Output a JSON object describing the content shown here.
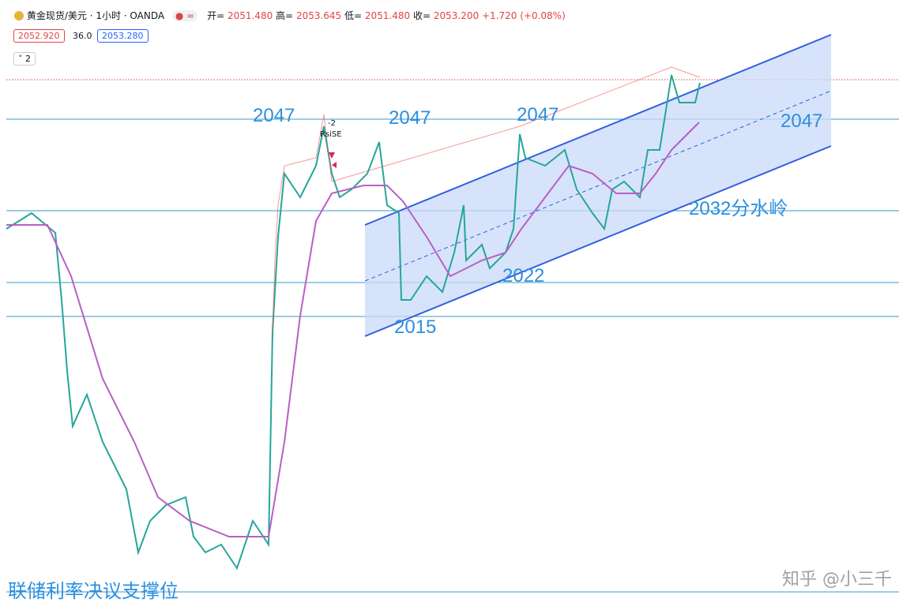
{
  "header": {
    "symbol": "黄金现货/美元 · 1小时 · OANDA",
    "open": "开=",
    "open_value": "2051.480",
    "high": "高=",
    "high_value": "2053.645",
    "low": "低=",
    "low_value": "2051.480",
    "close": "收=",
    "close_value": "2053.200",
    "change": "+1.720 (+0.08%)",
    "bid": "2052.920",
    "spread": "36.0",
    "ask": "2053.280",
    "indicators": "2"
  },
  "annotations": [
    "2047",
    "2047",
    "2047",
    "2047",
    "2032分水岭",
    "2022",
    "2015",
    "联储利率决议支撑位"
  ],
  "signal": {
    "count": "-2",
    "name": "RsiSE"
  },
  "watermark": "知乎 @小三千"
}
